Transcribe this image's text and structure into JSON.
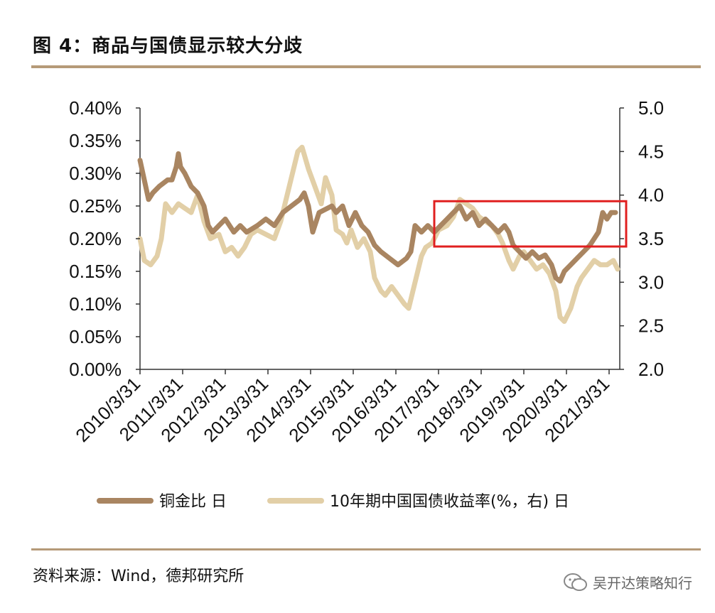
{
  "header": {
    "title": "图 4：商品与国债显示较大分歧"
  },
  "footer": {
    "source": "资料来源：Wind，德邦研究所",
    "watermark": "吴开达策略知行"
  },
  "chart_data": {
    "type": "line",
    "title": "图 4：商品与国债显示较大分歧",
    "xlabel": "",
    "ylabel_left": "",
    "ylabel_right": "",
    "x_ticks": [
      "2010/3/31",
      "2011/3/31",
      "2012/3/31",
      "2013/3/31",
      "2014/3/31",
      "2015/3/31",
      "2016/3/31",
      "2017/3/31",
      "2018/3/31",
      "2019/3/31",
      "2020/3/31",
      "2021/3/31"
    ],
    "y_left_ticks": [
      "0.00%",
      "0.05%",
      "0.10%",
      "0.15%",
      "0.20%",
      "0.25%",
      "0.30%",
      "0.35%",
      "0.40%"
    ],
    "y_right_ticks": [
      "2.0",
      "2.5",
      "3.0",
      "3.5",
      "4.0",
      "4.5",
      "5.0"
    ],
    "ylim_left": [
      0,
      0.4
    ],
    "ylim_right": [
      2.0,
      5.0
    ],
    "xlim": [
      2010.25,
      2021.5
    ],
    "grid": false,
    "legend_position": "bottom",
    "series": [
      {
        "name": "铜金比 日",
        "axis": "left",
        "color": "#a98561",
        "points": [
          [
            2010.25,
            0.32
          ],
          [
            2010.35,
            0.29
          ],
          [
            2010.45,
            0.26
          ],
          [
            2010.55,
            0.27
          ],
          [
            2010.7,
            0.28
          ],
          [
            2010.9,
            0.29
          ],
          [
            2011.0,
            0.29
          ],
          [
            2011.1,
            0.31
          ],
          [
            2011.15,
            0.33
          ],
          [
            2011.2,
            0.31
          ],
          [
            2011.3,
            0.3
          ],
          [
            2011.45,
            0.28
          ],
          [
            2011.6,
            0.27
          ],
          [
            2011.75,
            0.25
          ],
          [
            2011.85,
            0.22
          ],
          [
            2011.95,
            0.21
          ],
          [
            2012.1,
            0.22
          ],
          [
            2012.25,
            0.23
          ],
          [
            2012.45,
            0.21
          ],
          [
            2012.6,
            0.22
          ],
          [
            2012.75,
            0.21
          ],
          [
            2013.0,
            0.22
          ],
          [
            2013.2,
            0.23
          ],
          [
            2013.4,
            0.22
          ],
          [
            2013.6,
            0.24
          ],
          [
            2013.8,
            0.25
          ],
          [
            2014.0,
            0.26
          ],
          [
            2014.1,
            0.27
          ],
          [
            2014.2,
            0.25
          ],
          [
            2014.3,
            0.21
          ],
          [
            2014.45,
            0.24
          ],
          [
            2014.6,
            0.245
          ],
          [
            2014.75,
            0.25
          ],
          [
            2014.85,
            0.24
          ],
          [
            2015.0,
            0.25
          ],
          [
            2015.15,
            0.22
          ],
          [
            2015.3,
            0.24
          ],
          [
            2015.45,
            0.22
          ],
          [
            2015.6,
            0.21
          ],
          [
            2015.75,
            0.19
          ],
          [
            2015.9,
            0.18
          ],
          [
            2016.1,
            0.17
          ],
          [
            2016.3,
            0.16
          ],
          [
            2016.5,
            0.17
          ],
          [
            2016.6,
            0.18
          ],
          [
            2016.7,
            0.22
          ],
          [
            2016.85,
            0.21
          ],
          [
            2017.0,
            0.22
          ],
          [
            2017.15,
            0.21
          ],
          [
            2017.3,
            0.22
          ],
          [
            2017.45,
            0.23
          ],
          [
            2017.6,
            0.24
          ],
          [
            2017.75,
            0.25
          ],
          [
            2017.9,
            0.23
          ],
          [
            2018.05,
            0.24
          ],
          [
            2018.2,
            0.22
          ],
          [
            2018.35,
            0.23
          ],
          [
            2018.5,
            0.22
          ],
          [
            2018.65,
            0.21
          ],
          [
            2018.8,
            0.22
          ],
          [
            2018.9,
            0.21
          ],
          [
            2019.0,
            0.19
          ],
          [
            2019.15,
            0.18
          ],
          [
            2019.3,
            0.17
          ],
          [
            2019.45,
            0.18
          ],
          [
            2019.6,
            0.17
          ],
          [
            2019.75,
            0.175
          ],
          [
            2019.9,
            0.16
          ],
          [
            2020.0,
            0.14
          ],
          [
            2020.1,
            0.135
          ],
          [
            2020.2,
            0.15
          ],
          [
            2020.35,
            0.16
          ],
          [
            2020.5,
            0.17
          ],
          [
            2020.65,
            0.18
          ],
          [
            2020.8,
            0.19
          ],
          [
            2020.9,
            0.2
          ],
          [
            2021.0,
            0.21
          ],
          [
            2021.1,
            0.24
          ],
          [
            2021.2,
            0.23
          ],
          [
            2021.3,
            0.24
          ],
          [
            2021.4,
            0.24
          ]
        ]
      },
      {
        "name": "10年期中国国债收益率(%，右) 日",
        "axis": "right",
        "color": "#e2cfa7",
        "points": [
          [
            2010.25,
            3.5
          ],
          [
            2010.35,
            3.25
          ],
          [
            2010.5,
            3.2
          ],
          [
            2010.65,
            3.3
          ],
          [
            2010.75,
            3.5
          ],
          [
            2010.85,
            3.9
          ],
          [
            2011.0,
            3.8
          ],
          [
            2011.15,
            3.9
          ],
          [
            2011.3,
            3.85
          ],
          [
            2011.45,
            3.8
          ],
          [
            2011.6,
            4.0
          ],
          [
            2011.75,
            3.7
          ],
          [
            2011.9,
            3.5
          ],
          [
            2012.1,
            3.55
          ],
          [
            2012.25,
            3.35
          ],
          [
            2012.4,
            3.4
          ],
          [
            2012.55,
            3.3
          ],
          [
            2012.7,
            3.4
          ],
          [
            2012.85,
            3.55
          ],
          [
            2013.0,
            3.6
          ],
          [
            2013.2,
            3.55
          ],
          [
            2013.4,
            3.5
          ],
          [
            2013.55,
            3.7
          ],
          [
            2013.7,
            4.0
          ],
          [
            2013.85,
            4.3
          ],
          [
            2013.95,
            4.5
          ],
          [
            2014.05,
            4.55
          ],
          [
            2014.2,
            4.3
          ],
          [
            2014.35,
            4.1
          ],
          [
            2014.5,
            3.9
          ],
          [
            2014.6,
            4.2
          ],
          [
            2014.75,
            4.0
          ],
          [
            2014.85,
            3.6
          ],
          [
            2015.0,
            3.55
          ],
          [
            2015.1,
            3.45
          ],
          [
            2015.2,
            3.6
          ],
          [
            2015.35,
            3.4
          ],
          [
            2015.5,
            3.5
          ],
          [
            2015.65,
            3.35
          ],
          [
            2015.75,
            3.05
          ],
          [
            2015.9,
            2.9
          ],
          [
            2016.0,
            2.85
          ],
          [
            2016.15,
            2.95
          ],
          [
            2016.3,
            2.85
          ],
          [
            2016.45,
            2.75
          ],
          [
            2016.55,
            2.7
          ],
          [
            2016.65,
            2.9
          ],
          [
            2016.75,
            3.1
          ],
          [
            2016.85,
            3.3
          ],
          [
            2016.95,
            3.4
          ],
          [
            2017.1,
            3.45
          ],
          [
            2017.25,
            3.6
          ],
          [
            2017.45,
            3.65
          ],
          [
            2017.6,
            3.75
          ],
          [
            2017.75,
            3.95
          ],
          [
            2017.9,
            3.9
          ],
          [
            2018.05,
            3.85
          ],
          [
            2018.2,
            3.75
          ],
          [
            2018.35,
            3.7
          ],
          [
            2018.5,
            3.65
          ],
          [
            2018.65,
            3.55
          ],
          [
            2018.75,
            3.45
          ],
          [
            2018.9,
            3.25
          ],
          [
            2019.0,
            3.15
          ],
          [
            2019.15,
            3.3
          ],
          [
            2019.25,
            3.35
          ],
          [
            2019.4,
            3.25
          ],
          [
            2019.55,
            3.15
          ],
          [
            2019.7,
            3.2
          ],
          [
            2019.85,
            3.1
          ],
          [
            2020.0,
            2.9
          ],
          [
            2020.1,
            2.6
          ],
          [
            2020.2,
            2.55
          ],
          [
            2020.35,
            2.7
          ],
          [
            2020.5,
            2.95
          ],
          [
            2020.6,
            3.05
          ],
          [
            2020.75,
            3.15
          ],
          [
            2020.9,
            3.25
          ],
          [
            2021.05,
            3.2
          ],
          [
            2021.2,
            3.2
          ],
          [
            2021.35,
            3.25
          ],
          [
            2021.45,
            3.15
          ]
        ]
      }
    ],
    "annotation": {
      "type": "rectangle",
      "color": "#e02020"
    }
  }
}
